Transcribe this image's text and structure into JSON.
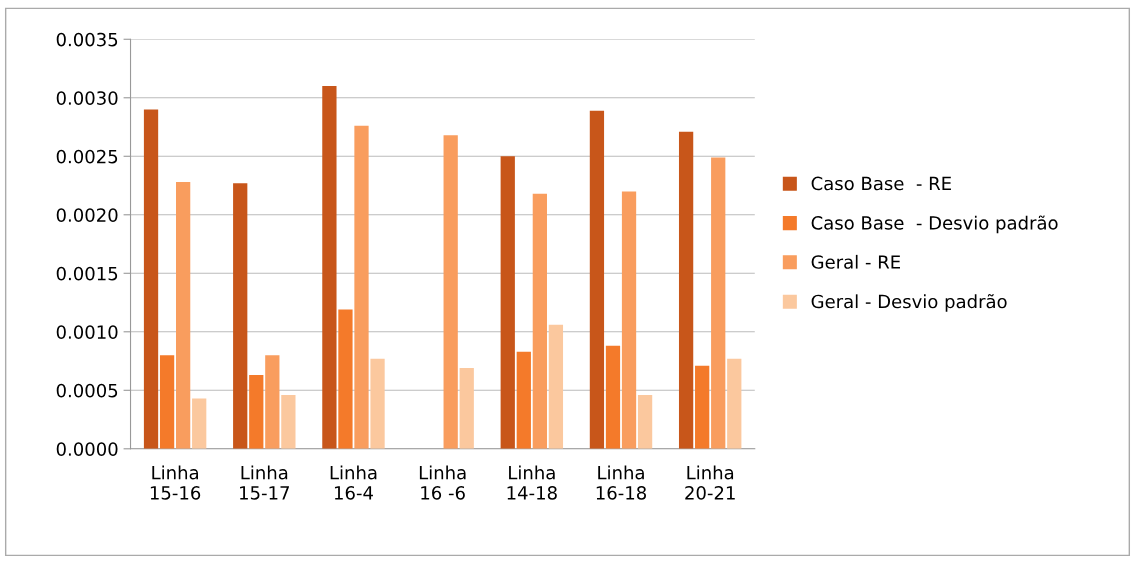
{
  "chart_data": {
    "type": "bar",
    "categories": [
      "Linha\n15-16",
      "Linha\n15-17",
      "Linha\n16-4",
      "Linha\n16 -6",
      "Linha\n14-18",
      "Linha\n16-18",
      "Linha\n20-21"
    ],
    "series": [
      {
        "name": "Caso Base  - RE",
        "color": "#c8561a",
        "values": [
          0.0029,
          0.00227,
          0.0031,
          null,
          0.0025,
          0.00289,
          0.00271
        ]
      },
      {
        "name": "Caso Base  - Desvio padrão",
        "color": "#f47a2a",
        "values": [
          0.0008,
          0.00063,
          0.00119,
          null,
          0.00083,
          0.00088,
          0.00071
        ]
      },
      {
        "name": "Geral - RE",
        "color": "#f99d5e",
        "values": [
          0.00228,
          0.0008,
          0.00276,
          0.00268,
          0.00218,
          0.0022,
          0.00249
        ]
      },
      {
        "name": "Geral - Desvio padrão",
        "color": "#fbc89e",
        "values": [
          0.00043,
          0.00046,
          0.00077,
          0.00069,
          0.00106,
          0.00046,
          0.00077
        ]
      }
    ],
    "ylim": [
      0,
      0.0035
    ],
    "yticks": [
      {
        "value": 0,
        "label": "0.0000"
      },
      {
        "value": 0.0005,
        "label": "0.0005"
      },
      {
        "value": 0.001,
        "label": "0.0010"
      },
      {
        "value": 0.0015,
        "label": "0.0015"
      },
      {
        "value": 0.002,
        "label": "0.0020"
      },
      {
        "value": 0.0025,
        "label": "0.0025"
      },
      {
        "value": 0.003,
        "label": "0.0030"
      },
      {
        "value": 0.0035,
        "label": "0.0035"
      }
    ],
    "grid": "y",
    "legend": "right"
  }
}
